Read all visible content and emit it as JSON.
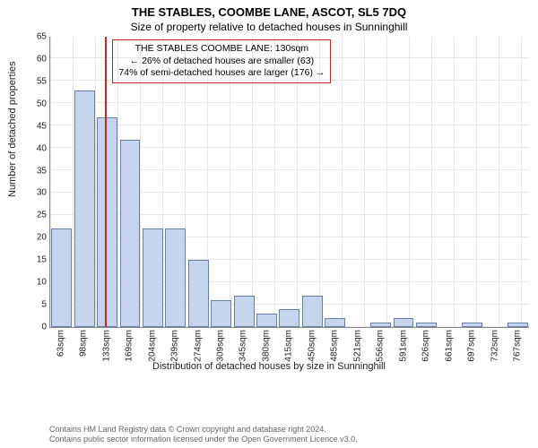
{
  "title": "THE STABLES, COOMBE LANE, ASCOT, SL5 7DQ",
  "subtitle": "Size of property relative to detached houses in Sunninghill",
  "ylabel": "Number of detached properties",
  "xlabel": "Distribution of detached houses by size in Sunninghill",
  "chart": {
    "type": "histogram",
    "ylim_max": 65,
    "ytick_step": 5,
    "bar_fill": "#c7d4ee",
    "bar_stroke": "#6a7fa8",
    "grid_color": "#e6e6e6",
    "background_color": "#ffffff",
    "categories": [
      "63sqm",
      "98sqm",
      "133sqm",
      "169sqm",
      "204sqm",
      "239sqm",
      "274sqm",
      "309sqm",
      "345sqm",
      "380sqm",
      "415sqm",
      "450sqm",
      "485sqm",
      "521sqm",
      "556sqm",
      "591sqm",
      "626sqm",
      "661sqm",
      "697sqm",
      "732sqm",
      "767sqm"
    ],
    "values": [
      22,
      53,
      47,
      42,
      22,
      22,
      15,
      6,
      7,
      3,
      4,
      7,
      2,
      0,
      1,
      2,
      1,
      0,
      1,
      0,
      1
    ],
    "marker": {
      "position_index": 1.9,
      "color": "#d02323"
    },
    "annotation": {
      "border_color": "#d02323",
      "lines": [
        "THE STABLES COOMBE LANE: 130sqm",
        "← 26% of detached houses are smaller (63)",
        "74% of semi-detached houses are larger (176) →"
      ]
    }
  },
  "footer_lines": [
    "Contains HM Land Registry data © Crown copyright and database right 2024.",
    "Contains public sector information licensed under the Open Government Licence v3.0."
  ]
}
